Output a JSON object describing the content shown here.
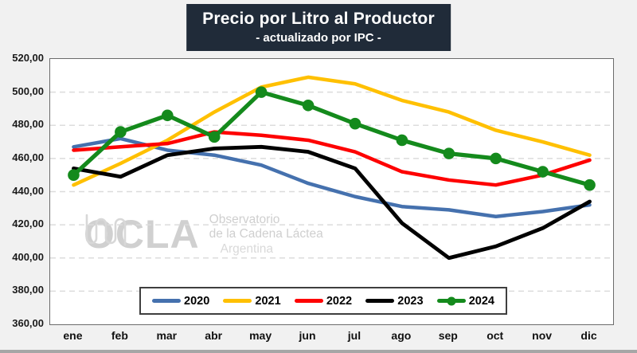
{
  "title": {
    "line1": "Precio por Litro al Productor",
    "line2": "- actualizado por IPC -"
  },
  "watermark": {
    "brand": "OCLA",
    "desc_line1": "Observatorio",
    "desc_line2": "de la Cadena Láctea",
    "desc_line3": "Argentina",
    "color": "#d0d0d0",
    "icon": "milk-pulse-squiggle-icon"
  },
  "chart_data": {
    "type": "line",
    "title": "Precio por Litro al Productor",
    "subtitle": "- actualizado por IPC -",
    "categories": [
      "ene",
      "feb",
      "mar",
      "abr",
      "may",
      "jun",
      "jul",
      "ago",
      "sep",
      "oct",
      "nov",
      "dic"
    ],
    "series": [
      {
        "name": "2020",
        "color": "#4571AE",
        "marker": false,
        "values": [
          467,
          472,
          465,
          462,
          456,
          445,
          437,
          431,
          429,
          425,
          428,
          432
        ]
      },
      {
        "name": "2021",
        "color": "#FFC000",
        "marker": false,
        "values": [
          444,
          457,
          471,
          488,
          503,
          509,
          505,
          495,
          488,
          477,
          470,
          462
        ]
      },
      {
        "name": "2022",
        "color": "#FE0000",
        "marker": false,
        "values": [
          465,
          467,
          469,
          476,
          474,
          471,
          464,
          452,
          447,
          444,
          450,
          459
        ]
      },
      {
        "name": "2023",
        "color": "#000000",
        "marker": false,
        "values": [
          454,
          449,
          462,
          466,
          467,
          464,
          454,
          421,
          400,
          407,
          418,
          434
        ]
      },
      {
        "name": "2024",
        "color": "#148A1C",
        "marker": true,
        "values": [
          450,
          476,
          486,
          473,
          500,
          492,
          481,
          471,
          463,
          460,
          452,
          444
        ]
      }
    ],
    "ylim": [
      360,
      520
    ],
    "ytick_step": 20,
    "ytick_format": "decimal-comma-2",
    "xlabel": "",
    "ylabel": "",
    "grid": "horizontal-dashed",
    "grid_color": "#dcdcdc",
    "legend_position": "bottom-center-inside",
    "plot_background": "#ffffff",
    "page_background": "#f1f1f1"
  }
}
